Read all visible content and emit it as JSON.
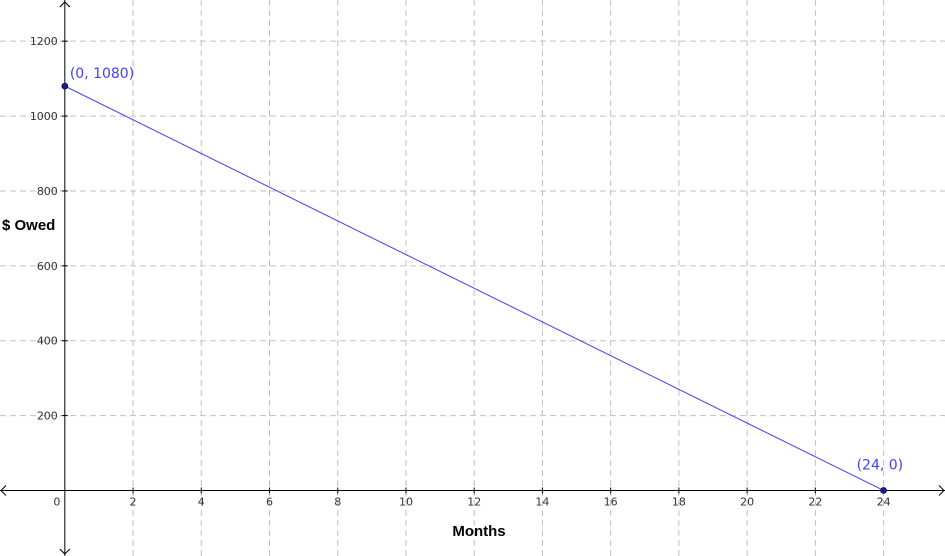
{
  "colors": {
    "series": "#4040ff",
    "grid": "#c0c0c0",
    "axis": "#000000",
    "point_fill": "#1a1aa6"
  },
  "chart_data": {
    "type": "line",
    "title": "",
    "xlabel": "Months",
    "ylabel": "$ Owed",
    "xlim": [
      -1.9,
      25.8
    ],
    "ylim": [
      -175,
      1310
    ],
    "x_ticks": [
      0,
      2,
      4,
      6,
      8,
      10,
      12,
      14,
      16,
      18,
      20,
      22,
      24
    ],
    "x_tick_labels": [
      "0",
      "2",
      "4",
      "6",
      "8",
      "10",
      "12",
      "14",
      "16",
      "18",
      "20",
      "22",
      "24"
    ],
    "y_ticks": [
      200,
      400,
      600,
      800,
      1000,
      1200
    ],
    "y_tick_labels": [
      "200",
      "400",
      "600",
      "800",
      "1000",
      "1200"
    ],
    "grid": true,
    "series": [
      {
        "x": [
          0,
          24
        ],
        "y": [
          1080,
          0
        ]
      }
    ],
    "points": [
      {
        "x": 0,
        "y": 1080,
        "label": "(0, 1080)"
      },
      {
        "x": 24,
        "y": 0,
        "label": "(24, 0)"
      }
    ]
  }
}
